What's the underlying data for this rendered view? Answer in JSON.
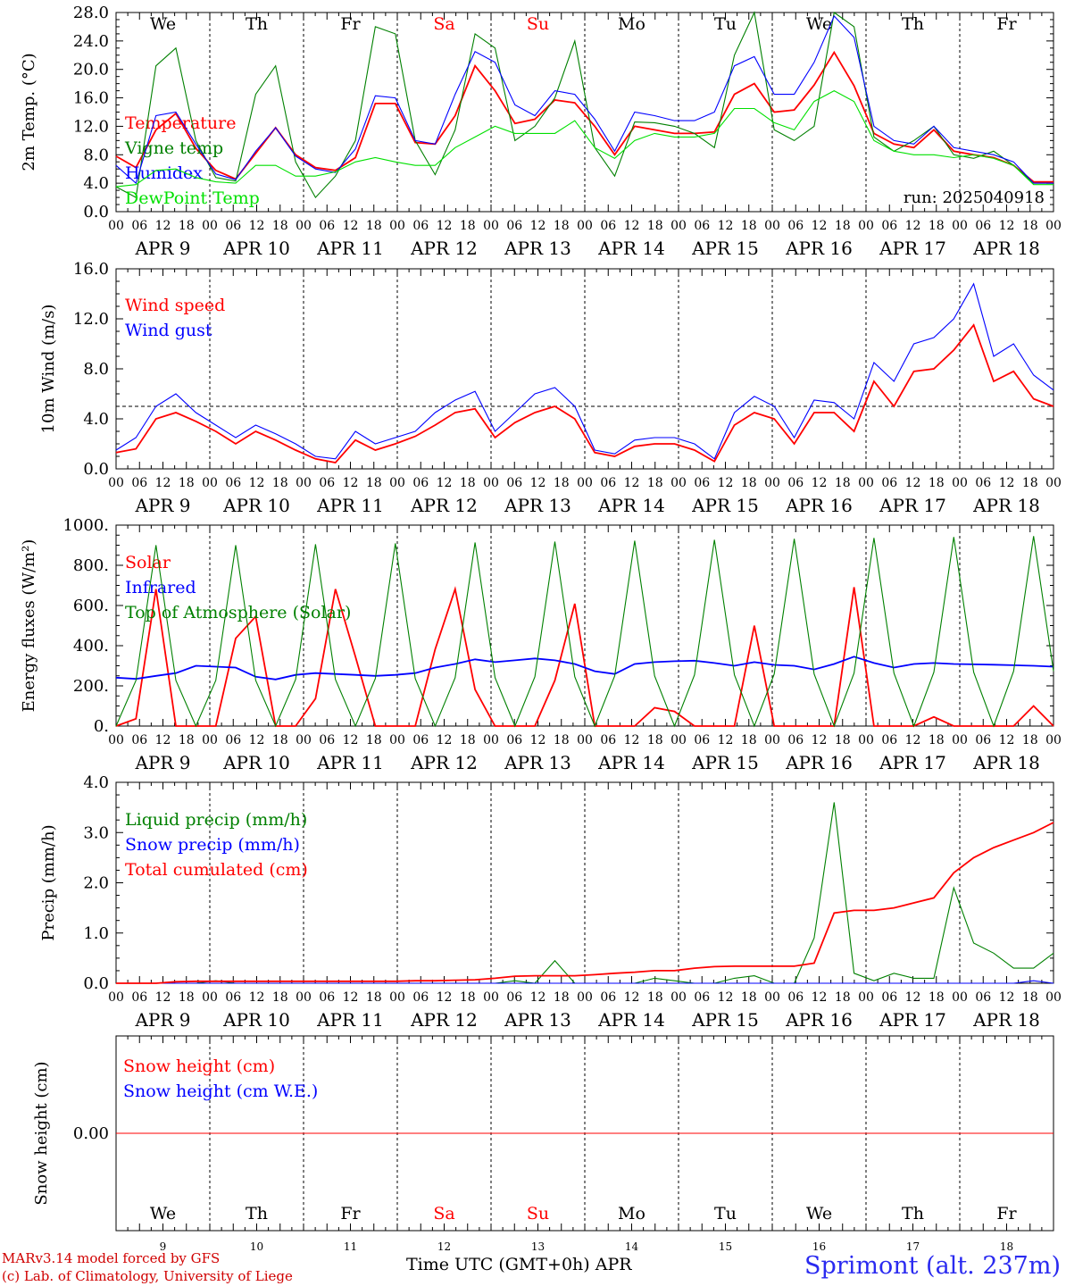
{
  "days": [
    "9",
    "10",
    "11",
    "12",
    "13",
    "14",
    "15",
    "16",
    "17",
    "18"
  ],
  "day_labels": [
    "APR  9",
    "APR 10",
    "APR 11",
    "APR 12",
    "APR 13",
    "APR 14",
    "APR 15",
    "APR 16",
    "APR 17",
    "APR 18"
  ],
  "weekdays": [
    "We",
    "Th",
    "Fr",
    "Sa",
    "Su",
    "Mo",
    "Tu",
    "We",
    "Th",
    "Fr"
  ],
  "weekend_flags": [
    false,
    false,
    false,
    true,
    true,
    false,
    false,
    false,
    false,
    false
  ],
  "hour_ticks": [
    "00",
    "06",
    "12",
    "18"
  ],
  "last_tick": "00",
  "run_label": "run: 2025040918",
  "footer": {
    "credit1": "MARv3.14 model forced by GFS",
    "credit2": "(c) Lab. of Climatology, University of Liege",
    "xtitle": "Time UTC (GMT+0h) APR",
    "location": "Sprimont (alt. 237m)"
  },
  "colors": {
    "red": "#ff0000",
    "green": "#008000",
    "blue": "#0000ff",
    "lightgreen": "#00e000",
    "weekend": "#ff0000"
  },
  "chart_data": [
    {
      "type": "line",
      "ylabel": "2m Temp. (°C)",
      "ylim": [
        0,
        28
      ],
      "yticks": [
        "0.0",
        "4.0",
        "8.0",
        "12.0",
        "16.0",
        "20.0",
        "24.0",
        "28.0"
      ],
      "x": "hours since Apr 9 00 UTC (step 6h)",
      "series": [
        {
          "name": "Temperature",
          "color": "red",
          "values": [
            7.8,
            6.2,
            11.5,
            13.8,
            8.9,
            5.8,
            4.6,
            8.2,
            11.8,
            8.0,
            6.2,
            5.8,
            7.6,
            15.2,
            15.2,
            9.7,
            9.5,
            13.5,
            20.5,
            17.0,
            12.4,
            13.0,
            15.7,
            15.3,
            12.0,
            8.0,
            12.0,
            11.5,
            11.0,
            11.0,
            11.2,
            16.5,
            18.0,
            14.0,
            14.3,
            17.8,
            22.4,
            17.7,
            11.0,
            9.5,
            9.0,
            11.5,
            8.5,
            8.0,
            7.6,
            6.5,
            4.2,
            4.2
          ]
        },
        {
          "name": "Vigne temp",
          "color": "green",
          "values": [
            3.5,
            2.0,
            20.5,
            23.0,
            10.0,
            4.8,
            4.3,
            16.5,
            20.5,
            7.0,
            2.0,
            5.0,
            10.0,
            26.0,
            25.0,
            10.0,
            5.2,
            11.5,
            25.0,
            23.0,
            10.0,
            12.0,
            16.0,
            24.0,
            9.0,
            5.0,
            12.6,
            12.5,
            12.0,
            11.0,
            9.0,
            22.0,
            28.0,
            11.5,
            10.0,
            12.0,
            28.0,
            26.0,
            10.5,
            8.5,
            10.0,
            12.0,
            8.0,
            7.5,
            8.5,
            6.5,
            4.0,
            4.0
          ]
        },
        {
          "name": "Humidex",
          "color": "blue",
          "values": [
            6.5,
            4.0,
            13.5,
            14.0,
            9.5,
            5.3,
            4.5,
            8.5,
            11.8,
            7.8,
            6.0,
            5.5,
            8.8,
            16.3,
            16.0,
            10.0,
            9.5,
            16.5,
            22.5,
            21.0,
            15.0,
            13.5,
            17.0,
            16.5,
            13.0,
            8.5,
            14.0,
            13.5,
            12.8,
            12.8,
            14.0,
            20.5,
            21.8,
            16.5,
            16.5,
            21.0,
            27.5,
            24.5,
            12.0,
            10.0,
            9.5,
            12.0,
            9.0,
            8.5,
            8.0,
            7.0,
            4.0,
            4.0
          ]
        },
        {
          "name": "DewPoint Temp",
          "color": "lightgreen",
          "values": [
            3.5,
            3.8,
            5.8,
            6.0,
            4.8,
            4.2,
            4.0,
            6.5,
            6.5,
            5.0,
            5.0,
            5.6,
            7.0,
            7.6,
            7.0,
            6.5,
            6.5,
            9.0,
            10.5,
            12.0,
            11.0,
            11.0,
            11.0,
            12.8,
            9.0,
            7.5,
            10.0,
            11.0,
            10.5,
            10.5,
            11.0,
            14.5,
            14.5,
            12.5,
            11.5,
            15.5,
            17.0,
            15.5,
            10.0,
            8.5,
            8.0,
            8.0,
            7.6,
            8.0,
            7.5,
            6.5,
            3.8,
            3.8
          ]
        }
      ]
    },
    {
      "type": "line",
      "ylabel": "10m Wind (m/s)",
      "ylim": [
        0,
        16
      ],
      "yticks": [
        "0.0",
        "4.0",
        "8.0",
        "12.0",
        "16.0"
      ],
      "reference_line": 5.0,
      "series": [
        {
          "name": "Wind speed",
          "color": "red",
          "values": [
            1.3,
            1.6,
            4.0,
            4.5,
            3.8,
            3.0,
            2.0,
            3.0,
            2.3,
            1.5,
            0.8,
            0.5,
            2.3,
            1.5,
            2.0,
            2.6,
            3.5,
            4.5,
            4.8,
            2.5,
            3.7,
            4.5,
            5.0,
            4.0,
            1.3,
            1.0,
            1.8,
            2.0,
            2.0,
            1.5,
            0.6,
            3.5,
            4.5,
            4.0,
            2.0,
            4.5,
            4.5,
            3.0,
            7.0,
            5.0,
            7.8,
            8.0,
            9.5,
            11.5,
            7.0,
            7.8,
            5.6,
            5.0
          ]
        },
        {
          "name": "Wind gust",
          "color": "blue",
          "values": [
            1.5,
            2.5,
            5.0,
            6.0,
            4.5,
            3.5,
            2.5,
            3.5,
            2.8,
            2.0,
            1.0,
            0.8,
            3.0,
            2.0,
            2.5,
            3.0,
            4.5,
            5.5,
            6.2,
            3.0,
            4.5,
            6.0,
            6.5,
            5.0,
            1.5,
            1.2,
            2.3,
            2.5,
            2.5,
            2.0,
            0.8,
            4.5,
            5.8,
            5.0,
            2.5,
            5.5,
            5.3,
            4.0,
            8.5,
            7.0,
            10.0,
            10.5,
            12.0,
            14.8,
            9.0,
            10.0,
            7.5,
            6.3
          ]
        }
      ]
    },
    {
      "type": "line",
      "ylabel": "Energy fluxes (W/m²)",
      "ylim": [
        0,
        1100
      ],
      "yticks": [
        "0.",
        "200.",
        "400.",
        "600.",
        "800.",
        "1000."
      ],
      "series": [
        {
          "name": "Solar",
          "color": "red",
          "values": [
            0,
            40,
            750,
            0,
            0,
            0,
            480,
            600,
            0,
            0,
            150,
            750,
            380,
            0,
            0,
            0,
            420,
            750,
            200,
            0,
            0,
            0,
            250,
            670,
            0,
            0,
            0,
            100,
            80,
            0,
            0,
            0,
            550,
            0,
            0,
            0,
            0,
            760,
            0,
            0,
            0,
            50,
            0,
            0,
            0,
            0,
            110,
            0
          ]
        },
        {
          "name": "Infrared",
          "color": "blue",
          "values": [
            265,
            258,
            275,
            290,
            330,
            325,
            320,
            270,
            255,
            280,
            290,
            285,
            280,
            275,
            280,
            290,
            320,
            340,
            365,
            350,
            360,
            370,
            360,
            340,
            300,
            285,
            340,
            350,
            355,
            358,
            345,
            330,
            350,
            335,
            330,
            310,
            340,
            380,
            345,
            320,
            340,
            345,
            340,
            338,
            336,
            333,
            330,
            325
          ]
        },
        {
          "name": "Top of Atmosphere (Solar)",
          "color": "green",
          "values": [
            0,
            250,
            990,
            250,
            0,
            250,
            990,
            250,
            0,
            255,
            995,
            255,
            0,
            260,
            1000,
            260,
            0,
            265,
            1005,
            265,
            0,
            270,
            1010,
            270,
            0,
            275,
            1015,
            275,
            0,
            280,
            1020,
            280,
            0,
            285,
            1025,
            285,
            0,
            290,
            1030,
            290,
            0,
            295,
            1035,
            295,
            0,
            300,
            1040,
            300
          ]
        }
      ]
    },
    {
      "type": "line",
      "ylabel": "Precip (mm/h)",
      "ylim": [
        0,
        4.0
      ],
      "yticks": [
        "0.0",
        "1.0",
        "2.0",
        "3.0",
        "4.0"
      ],
      "series": [
        {
          "name": "Liquid precip (mm/h)",
          "color": "green",
          "values": [
            0,
            0,
            0,
            0,
            0,
            0.05,
            0,
            0,
            0,
            0,
            0,
            0,
            0,
            0,
            0,
            0,
            0,
            0,
            0,
            0,
            0.05,
            0,
            0.45,
            0,
            0,
            0,
            0,
            0.1,
            0.05,
            0,
            0,
            0.1,
            0.15,
            0,
            0,
            0.9,
            3.6,
            0.2,
            0.05,
            0.2,
            0.1,
            0.1,
            1.9,
            0.8,
            0.6,
            0.3,
            0.3,
            0.6
          ]
        },
        {
          "name": "Snow precip (mm/h)",
          "color": "blue",
          "values": [
            0,
            0,
            0,
            0,
            0,
            0,
            0,
            0,
            0,
            0,
            0,
            0,
            0,
            0,
            0,
            0,
            0,
            0,
            0,
            0,
            0,
            0,
            0,
            0,
            0,
            0,
            0,
            0,
            0,
            0,
            0,
            0,
            0,
            0,
            0,
            0,
            0,
            0,
            0,
            0,
            0,
            0,
            0,
            0,
            0,
            0,
            0.05,
            0
          ]
        },
        {
          "name": "Total cumulated (cm)",
          "color": "red",
          "values": [
            0,
            0,
            0,
            0.03,
            0.04,
            0.04,
            0.04,
            0.04,
            0.04,
            0.04,
            0.04,
            0.04,
            0.04,
            0.04,
            0.04,
            0.05,
            0.05,
            0.06,
            0.07,
            0.1,
            0.14,
            0.15,
            0.15,
            0.15,
            0.17,
            0.2,
            0.22,
            0.25,
            0.25,
            0.3,
            0.33,
            0.34,
            0.34,
            0.34,
            0.34,
            0.4,
            1.4,
            1.45,
            1.45,
            1.5,
            1.6,
            1.7,
            2.2,
            2.5,
            2.7,
            2.85,
            3.0,
            3.2
          ]
        }
      ]
    },
    {
      "type": "line",
      "ylabel": "Snow height (cm)",
      "yticks": [
        "0.00"
      ],
      "series": [
        {
          "name": "Snow height (cm)",
          "color": "red",
          "values": [
            0,
            0
          ]
        },
        {
          "name": "Snow height (cm W.E.)",
          "color": "blue",
          "values": []
        }
      ]
    }
  ]
}
